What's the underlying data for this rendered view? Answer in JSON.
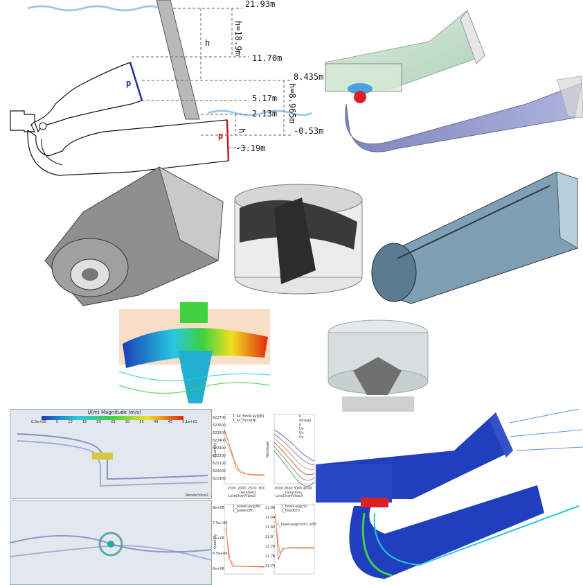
{
  "schematic": {
    "elevations": {
      "e1": "21.93m",
      "e2": "11.70m",
      "e3": "8.435m",
      "e4": "5.17m",
      "e5": "2.13m",
      "e6": "-0.53m",
      "e7": "-3.19m"
    },
    "head_total": "h=18.9m",
    "head_upper": "h",
    "head_draft": "h",
    "head_net": "h=8.965m",
    "pressure_top": "p",
    "pressure_bottom": "p"
  },
  "colorbar": {
    "title": "U(m) Magnitude (m/s)",
    "ticks": [
      "0.0e+00",
      "5",
      "10",
      "15",
      "20",
      "25",
      "30",
      "35",
      "40",
      "45",
      "5.1e+01"
    ],
    "render_label": "RenderView2"
  },
  "chart_force": {
    "legend": [
      "1_ax_force-avg(N)",
      "1_ax_force(N)"
    ],
    "ylabel": "Quantity",
    "xlabel": "Iterations",
    "yticks": [
      "622700",
      "622600",
      "622500",
      "622400",
      "622300",
      "622200",
      "622100",
      "622000",
      "621900"
    ],
    "xticks": [
      "1500",
      "2000",
      "2500",
      "3000"
    ],
    "footer": "LineChartView2"
  },
  "chart_residuals": {
    "legend": [
      "k",
      "omega",
      "p",
      "Ux",
      "Uy",
      "Uz"
    ],
    "ylabel": "Residuals",
    "xlabel": "Iterations",
    "xticks": [
      "1000",
      "2000",
      "3000",
      "4000"
    ],
    "footer": "LineChartView3"
  },
  "chart_power": {
    "legend": [
      "1_power-avg(W)",
      "1_power(W)"
    ],
    "yticks": [
      "8e+06",
      "7.5e+06",
      "7e+06",
      "6.5e+06",
      "6e+06"
    ],
    "ylabel": "Quantity"
  },
  "chart_head": {
    "legend": [
      "1_head-avg(m)",
      "1_head(m)"
    ],
    "yticks": [
      "11.86",
      "11.84",
      "11.82",
      "11.8",
      "11.78",
      "11.76",
      "11.74"
    ],
    "tooltip": "1_head-avg(m)=1.93E: 11.808"
  },
  "colors": {
    "water": "#9ec9ea",
    "pt": "#1f2a9c",
    "ps": "#c41a1a",
    "flow_blue": "#1b3fb8",
    "mesh_grey": "#6d6d6d"
  }
}
